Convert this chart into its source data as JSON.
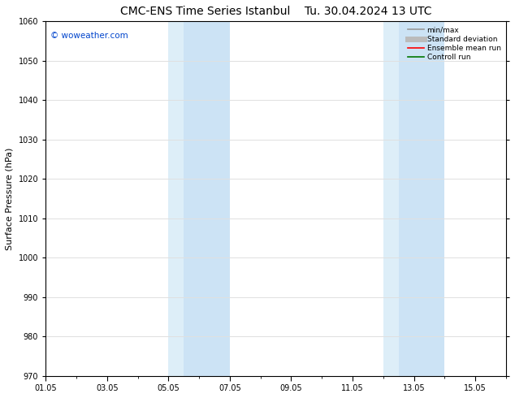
{
  "title_left": "CMC-ENS Time Series Istanbul",
  "title_right": "Tu. 30.04.2024 13 UTC",
  "ylabel": "Surface Pressure (hPa)",
  "ylim": [
    970,
    1060
  ],
  "yticks": [
    970,
    980,
    990,
    1000,
    1010,
    1020,
    1030,
    1040,
    1050,
    1060
  ],
  "xtick_labels": [
    "01.05",
    "03.05",
    "05.05",
    "07.05",
    "09.05",
    "11.05",
    "13.05",
    "15.05"
  ],
  "shaded_bands": [
    {
      "xmin": 4.0,
      "xmax": 4.5,
      "color": "#ddeef8"
    },
    {
      "xmin": 4.5,
      "xmax": 6.0,
      "color": "#cce3f5"
    },
    {
      "xmin": 11.0,
      "xmax": 11.5,
      "color": "#ddeef8"
    },
    {
      "xmin": 11.5,
      "xmax": 13.0,
      "color": "#cce3f5"
    }
  ],
  "watermark": "© woweather.com",
  "watermark_color": "#0044cc",
  "legend_items": [
    {
      "label": "min/max",
      "color": "#999999",
      "lw": 1.2,
      "style": "solid"
    },
    {
      "label": "Standard deviation",
      "color": "#bbbbbb",
      "lw": 5,
      "style": "solid"
    },
    {
      "label": "Ensemble mean run",
      "color": "#ff0000",
      "lw": 1.2,
      "style": "solid"
    },
    {
      "label": "Controll run",
      "color": "#007700",
      "lw": 1.2,
      "style": "solid"
    }
  ],
  "bg_color": "#ffffff",
  "grid_color": "#e0e0e0",
  "title_fontsize": 10,
  "tick_fontsize": 7,
  "ylabel_fontsize": 8
}
